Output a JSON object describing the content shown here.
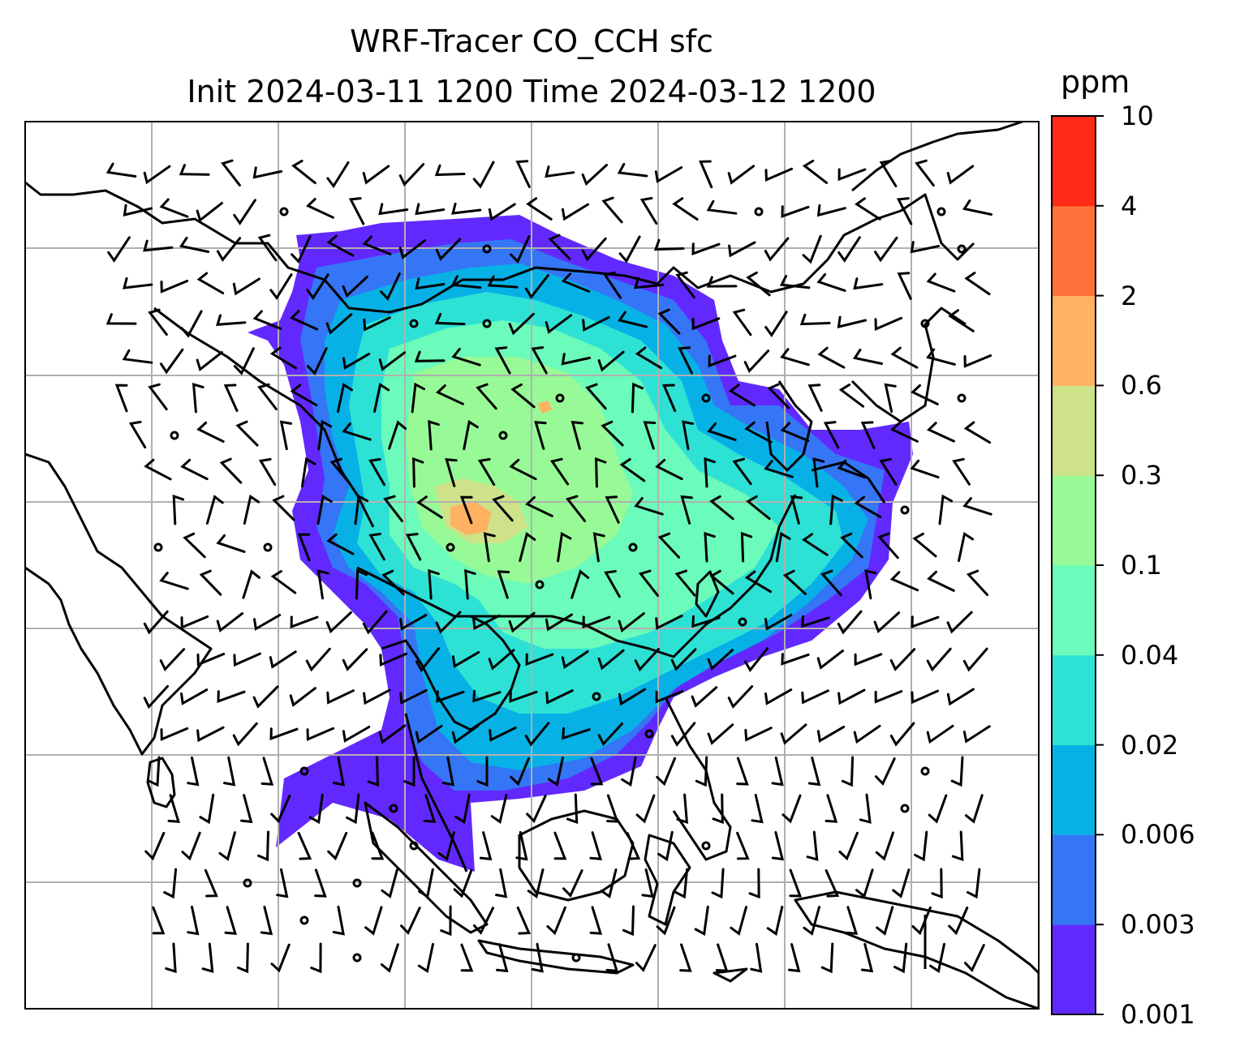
{
  "title": {
    "line1": "WRF-Tracer CO_CCH sfc",
    "line2": "Init 2024-03-11 1200 Time 2024-03-12 1200"
  },
  "colorbar": {
    "unit": "ppm",
    "levels": [
      "0.001",
      "0.003",
      "0.006",
      "0.02",
      "0.04",
      "0.1",
      "0.3",
      "0.6",
      "2",
      "4",
      "10"
    ],
    "colors": [
      "#6229ff",
      "#3476f5",
      "#07b1e6",
      "#2ee1d5",
      "#6bfbba",
      "#98fa97",
      "#cee289",
      "#feb262",
      "#ff713a",
      "#ff2b17"
    ]
  },
  "map": {
    "coastline_color": "#000000",
    "gridline_color": "#b0b0b0",
    "barb_color": "#000000",
    "field": "CO_CCH surface tracer concentration",
    "overlay": "wind barbs"
  }
}
